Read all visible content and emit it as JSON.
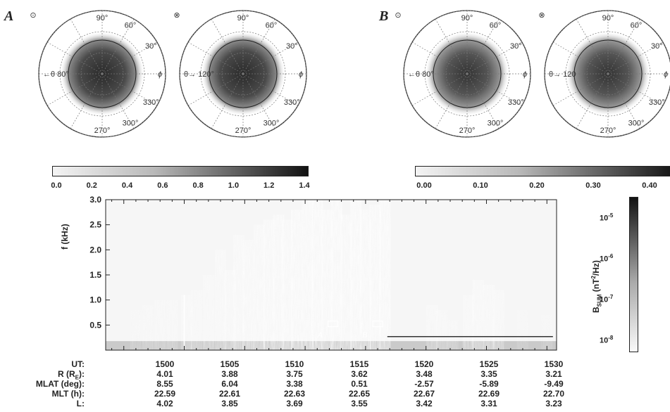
{
  "panels": {
    "a_letter": "A",
    "b_letter": "B",
    "a_colorbar_ticks": [
      "0.0",
      "0.2",
      "0.4",
      "0.6",
      "0.8",
      "1.0",
      "1.2",
      "1.4"
    ],
    "b_colorbar_ticks": [
      "0.00",
      "0.10",
      "0.20",
      "0.30",
      "0.40"
    ],
    "a_left_angle": "80°",
    "a_right_angle": "120°",
    "b_left_angle": "80°",
    "b_right_angle": "120",
    "azimuth_labels": [
      "90°",
      "60°",
      "30°",
      "330°",
      "300°",
      "270°"
    ],
    "theta_label": "θ",
    "phi_label": "ϕ"
  },
  "chart_data": {
    "type": "heatmap",
    "ylabel": "f (kHz)",
    "ylim": [
      0,
      3.0
    ],
    "yticks": [
      "0.5",
      "1.0",
      "1.5",
      "2.0",
      "2.5",
      "3.0"
    ],
    "colorbar": {
      "label": "B_SUM (nT²/Hz)",
      "tick_base": "10",
      "tick_exponents": [
        "-5",
        "-6",
        "-7",
        "-8"
      ]
    },
    "annotations": [
      "A",
      "B"
    ],
    "burst_columns": [
      {
        "t": 1496.0,
        "fmax": 0.8,
        "i": 0.25
      },
      {
        "t": 1497.0,
        "fmax": 0.9,
        "i": 0.3
      },
      {
        "t": 1498.0,
        "fmax": 1.0,
        "i": 0.35
      },
      {
        "t": 1499.0,
        "fmax": 1.0,
        "i": 0.35
      },
      {
        "t": 1500.2,
        "fmax": 1.1,
        "i": 0.4
      },
      {
        "t": 1501.0,
        "fmax": 1.2,
        "i": 0.4
      },
      {
        "t": 1502.0,
        "fmax": 1.5,
        "i": 0.45
      },
      {
        "t": 1503.0,
        "fmax": 2.0,
        "i": 0.5
      },
      {
        "t": 1503.8,
        "fmax": 1.6,
        "i": 0.5
      },
      {
        "t": 1504.5,
        "fmax": 2.3,
        "i": 0.55
      },
      {
        "t": 1505.3,
        "fmax": 2.2,
        "i": 0.6
      },
      {
        "t": 1506.2,
        "fmax": 2.5,
        "i": 0.6
      },
      {
        "t": 1507.0,
        "fmax": 2.6,
        "i": 0.65
      },
      {
        "t": 1507.8,
        "fmax": 2.7,
        "i": 0.65
      },
      {
        "t": 1508.5,
        "fmax": 2.6,
        "i": 0.7
      },
      {
        "t": 1509.3,
        "fmax": 2.8,
        "i": 0.75
      },
      {
        "t": 1510.2,
        "fmax": 3.0,
        "i": 0.8
      },
      {
        "t": 1511.0,
        "fmax": 3.0,
        "i": 0.8
      },
      {
        "t": 1511.8,
        "fmax": 2.8,
        "i": 0.75
      },
      {
        "t": 1512.6,
        "fmax": 3.0,
        "i": 0.8
      },
      {
        "t": 1513.4,
        "fmax": 2.7,
        "i": 0.7
      },
      {
        "t": 1514.2,
        "fmax": 3.0,
        "i": 0.85
      },
      {
        "t": 1515.0,
        "fmax": 2.8,
        "i": 0.75
      },
      {
        "t": 1515.8,
        "fmax": 2.9,
        "i": 0.75
      },
      {
        "t": 1516.6,
        "fmax": 3.0,
        "i": 0.8
      },
      {
        "t": 1520.5,
        "fmax": 0.9,
        "i": 0.4
      },
      {
        "t": 1521.3,
        "fmax": 0.8,
        "i": 0.35
      },
      {
        "t": 1522.2,
        "fmax": 0.6,
        "i": 0.3
      },
      {
        "t": 1523.5,
        "fmax": 1.1,
        "i": 0.45
      },
      {
        "t": 1524.3,
        "fmax": 1.4,
        "i": 0.55
      },
      {
        "t": 1525.2,
        "fmax": 1.3,
        "i": 0.5
      },
      {
        "t": 1526.0,
        "fmax": 1.2,
        "i": 0.45
      },
      {
        "t": 1528.0,
        "fmax": 0.8,
        "i": 0.2
      },
      {
        "t": 1530.0,
        "fmax": 0.7,
        "i": 0.18
      }
    ],
    "ephemeris": {
      "labels": [
        "UT:",
        "R (R",
        "MLAT (deg):",
        "MLT (h):",
        "L:"
      ],
      "r_sub": "E",
      "r_close": "):",
      "ut": [
        "1500",
        "1505",
        "1510",
        "1515",
        "1520",
        "1525",
        "1530"
      ],
      "r": [
        "4.01",
        "3.88",
        "3.75",
        "3.62",
        "3.48",
        "3.35",
        "3.21"
      ],
      "mlat": [
        "8.55",
        "6.04",
        "3.38",
        "0.51",
        "-2.57",
        "-5.89",
        "-9.49"
      ],
      "mlt": [
        "22.59",
        "22.61",
        "22.63",
        "22.65",
        "22.67",
        "22.69",
        "22.70"
      ],
      "l": [
        "4.02",
        "3.85",
        "3.69",
        "3.55",
        "3.42",
        "3.31",
        "3.23"
      ]
    }
  }
}
